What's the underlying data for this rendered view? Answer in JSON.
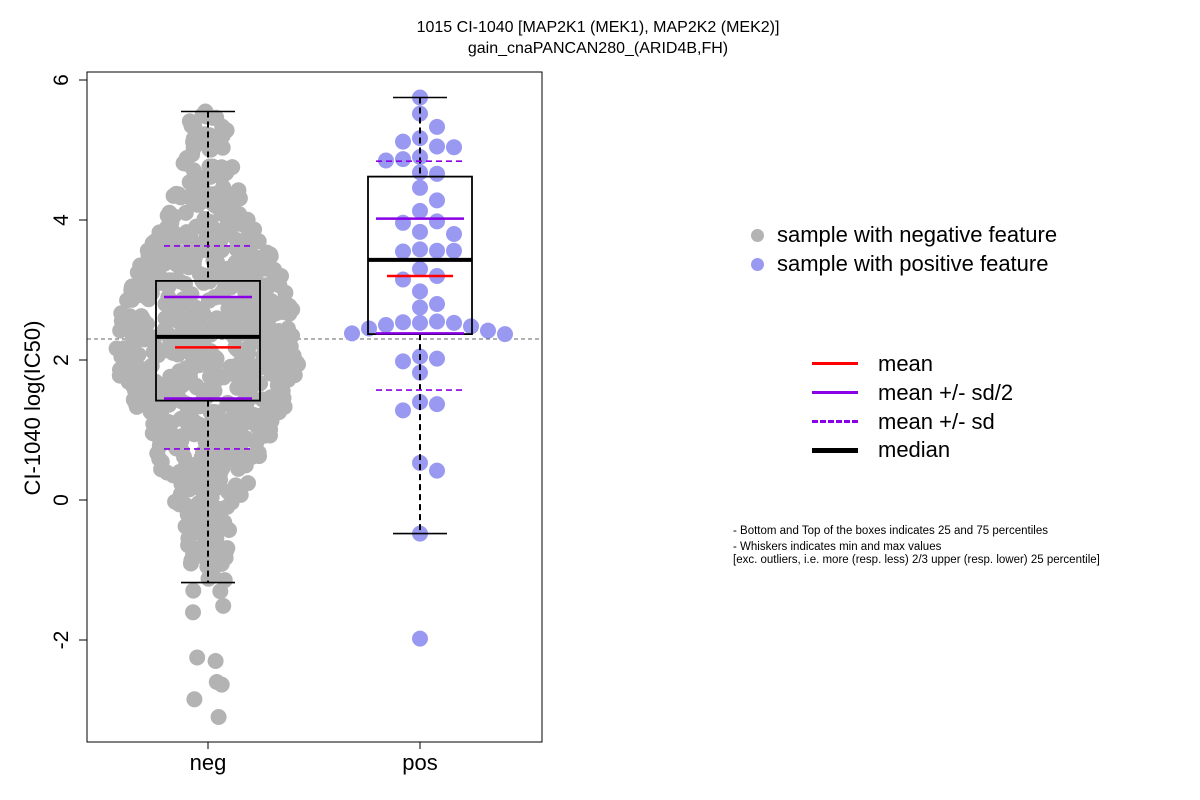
{
  "title": "1015 CI-1040 [MAP2K1 (MEK1), MAP2K2 (MEK2)]",
  "subtitle": "gain_cnaPANCAN280_(ARID4B,FH)",
  "colors": {
    "neg_points": "#b3b3b3",
    "pos_points": "#9999f2",
    "mean": "#ff0000",
    "sd": "#8a00e6",
    "median": "#000000"
  },
  "legend_points": [
    {
      "label": "sample with negative feature",
      "color": "#b3b3b3"
    },
    {
      "label": "sample with positive feature",
      "color": "#9999f2"
    }
  ],
  "legend_lines": [
    {
      "label": "mean",
      "color": "#ff0000",
      "style": "solid"
    },
    {
      "label": "mean +/- sd/2",
      "color": "#8a00e6",
      "style": "solid"
    },
    {
      "label": "mean +/- sd",
      "color": "#8a00e6",
      "style": "dashed"
    },
    {
      "label": "median",
      "color": "#000000",
      "style": "thick"
    }
  ],
  "notes": [
    "- Bottom and Top of the boxes indicates 25 and 75 percentiles",
    "- Whiskers indicates min and max values",
    "[exc. outliers, i.e. more (resp. less) 2/3 upper (resp. lower) 25 percentile]"
  ],
  "chart_data": {
    "type": "box-beeswarm",
    "title": "1015 CI-1040 [MAP2K1 (MEK1), MAP2K2 (MEK2)]",
    "subtitle": "gain_cnaPANCAN280_(ARID4B,FH)",
    "ylabel": "CI-1040 log(IC50)",
    "xlabel": "",
    "categories": [
      "neg",
      "pos"
    ],
    "ylim": [
      -3.4,
      6.2
    ],
    "yticks": [
      -2,
      0,
      2,
      4,
      6
    ],
    "reference_line": 2.3,
    "groups": [
      {
        "name": "neg",
        "q1": 1.42,
        "median": 2.33,
        "q3": 3.13,
        "whisker_low": -1.18,
        "whisker_high": 5.55,
        "mean": 2.18,
        "mean_minus_half_sd": 1.45,
        "mean_plus_half_sd": 2.9,
        "mean_minus_sd": 0.73,
        "mean_plus_sd": 3.63,
        "n_points": 760,
        "min": -3.1,
        "max": 5.55,
        "point_distribution": "approximately normal, mean 2.2, sd 1.45, bulk between 0 and 4.5"
      },
      {
        "name": "pos",
        "q1": 2.37,
        "median": 3.43,
        "q3": 4.62,
        "whisker_low": -0.48,
        "whisker_high": 5.75,
        "mean": 3.2,
        "mean_minus_half_sd": 2.38,
        "mean_plus_half_sd": 4.02,
        "mean_minus_sd": 1.57,
        "mean_plus_sd": 4.84,
        "min": -1.98,
        "max": 5.75,
        "values": [
          5.75,
          5.52,
          5.33,
          5.17,
          5.12,
          5.05,
          5.04,
          4.9,
          4.87,
          4.85,
          4.68,
          4.66,
          4.46,
          4.28,
          4.13,
          3.98,
          3.96,
          3.83,
          3.8,
          3.58,
          3.56,
          3.55,
          3.56,
          3.3,
          3.2,
          3.15,
          2.98,
          2.8,
          2.75,
          2.55,
          2.53,
          2.54,
          2.53,
          2.5,
          2.48,
          2.45,
          2.42,
          2.38,
          2.37,
          2.05,
          2.02,
          1.98,
          1.82,
          1.4,
          1.37,
          1.28,
          0.53,
          0.42,
          -0.48,
          -1.98
        ]
      }
    ]
  }
}
